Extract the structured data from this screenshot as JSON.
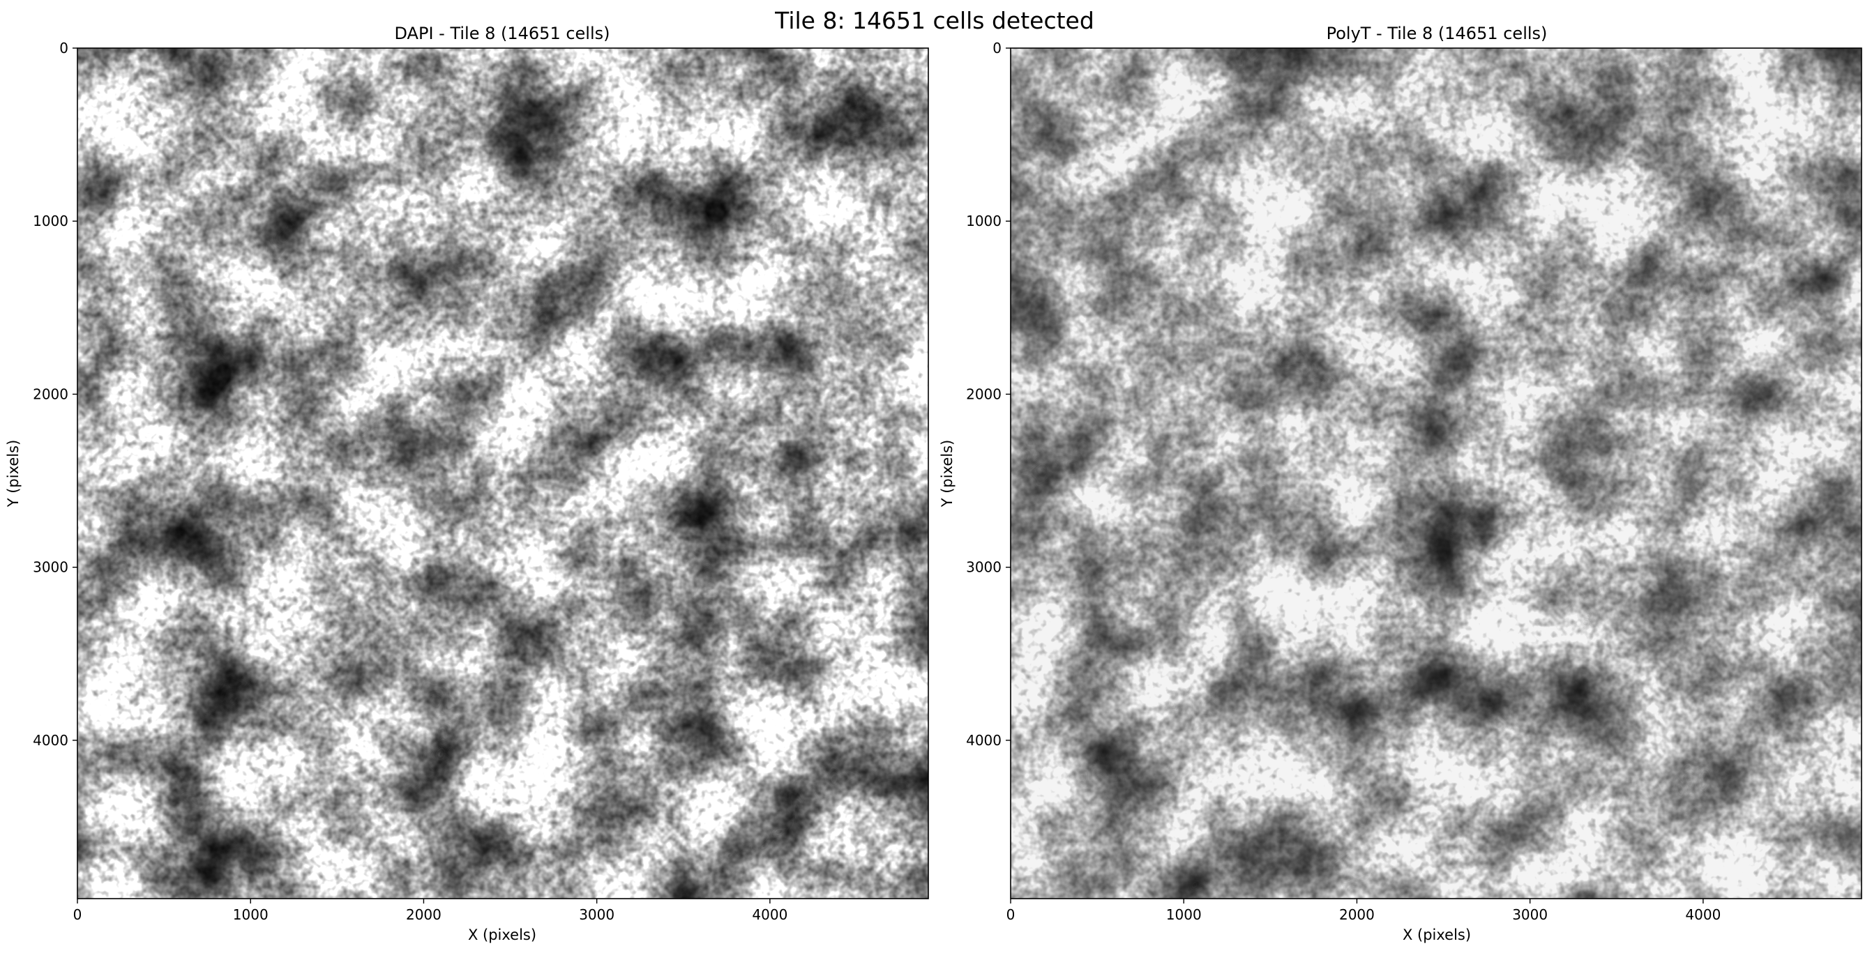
{
  "figure": {
    "suptitle": "Tile 8: 14651 cells detected"
  },
  "panels": [
    {
      "title": "DAPI - Tile 8 (14651 cells)",
      "xlabel": "X (pixels)",
      "ylabel": "Y (pixels)",
      "colormap": "gray",
      "x_ticks": [
        "0",
        "1000",
        "2000",
        "3000",
        "4000"
      ],
      "y_ticks": [
        "0",
        "1000",
        "2000",
        "3000",
        "4000"
      ]
    },
    {
      "title": "PolyT - Tile 8 (14651 cells)",
      "xlabel": "X (pixels)",
      "ylabel": "Y (pixels)",
      "colormap": "gray",
      "x_ticks": [
        "0",
        "1000",
        "2000",
        "3000",
        "4000"
      ],
      "y_ticks": [
        "0",
        "1000",
        "2000",
        "3000",
        "4000"
      ]
    }
  ],
  "image": {
    "extent_pixels": [
      4915,
      4915
    ],
    "x_range": [
      0,
      4915
    ],
    "y_range": [
      0,
      4915
    ],
    "y_axis_inverted": true
  }
}
